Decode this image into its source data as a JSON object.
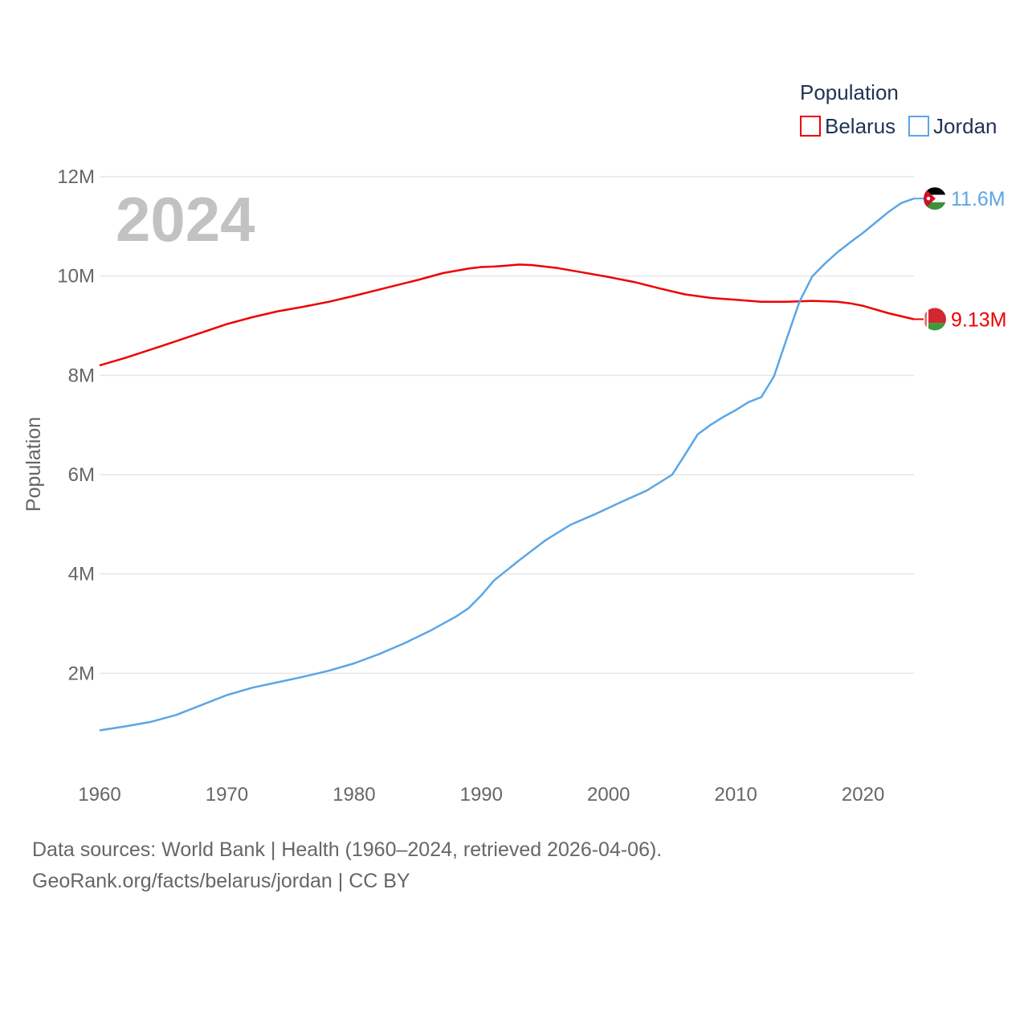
{
  "chart_data": {
    "type": "line",
    "title": "Population",
    "year_label": "2024",
    "ylabel": "Population",
    "xlabel": "",
    "ylim": [
      0,
      12000000
    ],
    "xlim": [
      1960,
      2024
    ],
    "x_ticks": [
      1960,
      1970,
      1980,
      1990,
      2000,
      2010,
      2020
    ],
    "x_tick_labels": [
      "1960",
      "1970",
      "1980",
      "1990",
      "2000",
      "2010",
      "2020"
    ],
    "y_ticks": [
      2000000,
      4000000,
      6000000,
      8000000,
      10000000,
      12000000
    ],
    "y_tick_labels": [
      "2M",
      "4M",
      "6M",
      "8M",
      "10M",
      "12M"
    ],
    "grid": true,
    "legend_position": "top-right",
    "series": [
      {
        "name": "Belarus",
        "color": "#ee0000",
        "end_label": "9.13M",
        "flag_icon": "belarus-flag-icon",
        "points": [
          [
            1960,
            8200000
          ],
          [
            1962,
            8350000
          ],
          [
            1965,
            8600000
          ],
          [
            1968,
            8860000
          ],
          [
            1970,
            9030000
          ],
          [
            1972,
            9170000
          ],
          [
            1974,
            9290000
          ],
          [
            1976,
            9380000
          ],
          [
            1978,
            9480000
          ],
          [
            1980,
            9600000
          ],
          [
            1982,
            9730000
          ],
          [
            1985,
            9920000
          ],
          [
            1987,
            10060000
          ],
          [
            1989,
            10150000
          ],
          [
            1990,
            10180000
          ],
          [
            1991,
            10190000
          ],
          [
            1992,
            10210000
          ],
          [
            1993,
            10230000
          ],
          [
            1994,
            10220000
          ],
          [
            1996,
            10160000
          ],
          [
            1998,
            10070000
          ],
          [
            2000,
            9980000
          ],
          [
            2002,
            9880000
          ],
          [
            2004,
            9750000
          ],
          [
            2006,
            9630000
          ],
          [
            2008,
            9560000
          ],
          [
            2010,
            9520000
          ],
          [
            2012,
            9480000
          ],
          [
            2014,
            9480000
          ],
          [
            2016,
            9500000
          ],
          [
            2018,
            9480000
          ],
          [
            2019,
            9450000
          ],
          [
            2020,
            9400000
          ],
          [
            2022,
            9250000
          ],
          [
            2024,
            9130000
          ]
        ]
      },
      {
        "name": "Jordan",
        "color": "#5ba6e6",
        "end_label": "11.6M",
        "flag_icon": "jordan-flag-icon",
        "points": [
          [
            1960,
            850000
          ],
          [
            1962,
            930000
          ],
          [
            1964,
            1020000
          ],
          [
            1966,
            1160000
          ],
          [
            1968,
            1360000
          ],
          [
            1970,
            1560000
          ],
          [
            1972,
            1710000
          ],
          [
            1974,
            1820000
          ],
          [
            1976,
            1930000
          ],
          [
            1978,
            2050000
          ],
          [
            1980,
            2200000
          ],
          [
            1982,
            2390000
          ],
          [
            1984,
            2610000
          ],
          [
            1986,
            2860000
          ],
          [
            1988,
            3140000
          ],
          [
            1989,
            3310000
          ],
          [
            1990,
            3570000
          ],
          [
            1991,
            3870000
          ],
          [
            1993,
            4280000
          ],
          [
            1995,
            4670000
          ],
          [
            1997,
            4990000
          ],
          [
            1999,
            5210000
          ],
          [
            2001,
            5450000
          ],
          [
            2003,
            5680000
          ],
          [
            2005,
            6000000
          ],
          [
            2006,
            6400000
          ],
          [
            2007,
            6810000
          ],
          [
            2008,
            7000000
          ],
          [
            2009,
            7160000
          ],
          [
            2010,
            7300000
          ],
          [
            2011,
            7460000
          ],
          [
            2012,
            7560000
          ],
          [
            2013,
            7980000
          ],
          [
            2014,
            8740000
          ],
          [
            2015,
            9480000
          ],
          [
            2016,
            9990000
          ],
          [
            2017,
            10250000
          ],
          [
            2018,
            10480000
          ],
          [
            2019,
            10680000
          ],
          [
            2020,
            10870000
          ],
          [
            2021,
            11080000
          ],
          [
            2022,
            11290000
          ],
          [
            2023,
            11470000
          ],
          [
            2024,
            11560000
          ]
        ]
      }
    ]
  },
  "footer": {
    "line1": "Data sources: World Bank | Health (1960–2024, retrieved 2026-04-06).",
    "line2": "GeoRank.org/facts/belarus/jordan | CC BY"
  }
}
